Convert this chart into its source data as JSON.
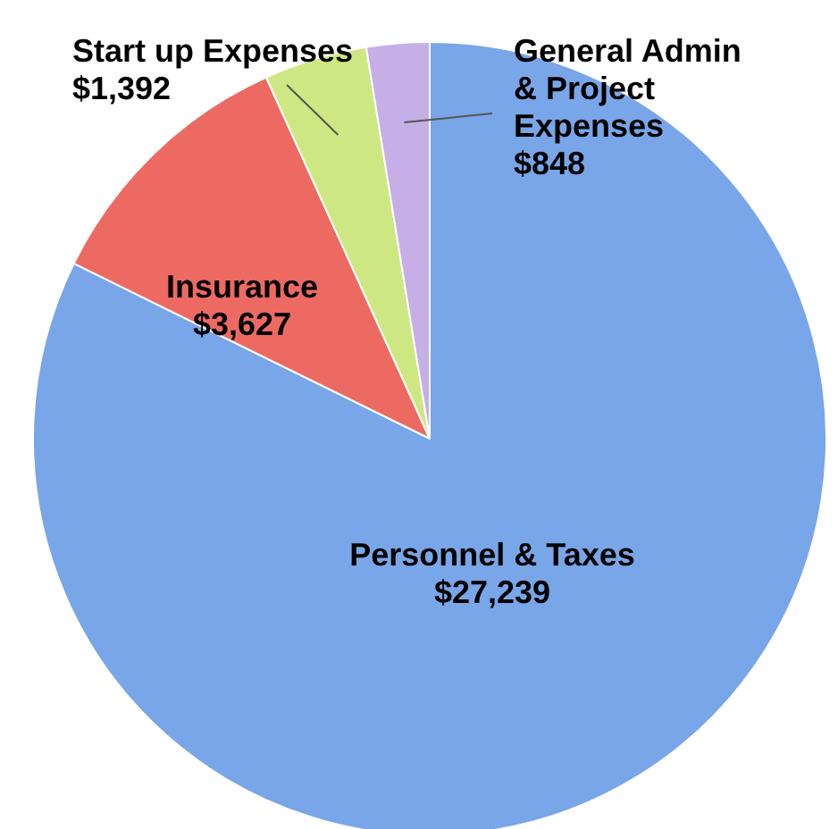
{
  "chart_data": {
    "type": "pie",
    "categories": [
      "Personnel & Taxes",
      "Insurance",
      "Start up Expenses",
      "General Admin\n& Project\nExpenses"
    ],
    "values": [
      27239,
      3627,
      1392,
      848
    ],
    "colors": [
      "#78a6e8",
      "#ec6a62",
      "#cde882",
      "#c6aee6"
    ],
    "value_labels": [
      "$27,239",
      "$3,627",
      "$1,392",
      "$848"
    ]
  }
}
